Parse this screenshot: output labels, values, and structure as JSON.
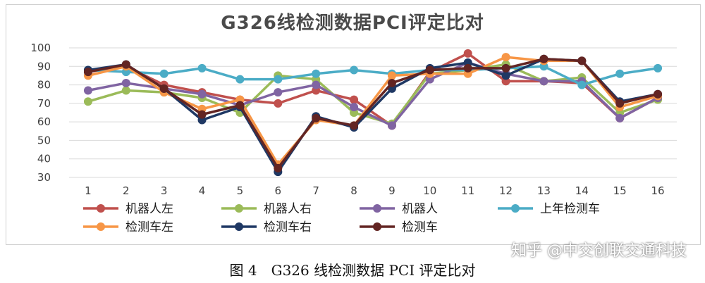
{
  "watermark": "知乎 @中交创联交通科技",
  "caption": "图 4　G326 线检测数据 PCI 评定比对",
  "chart_data": {
    "type": "line",
    "title": "G326线检测数据PCI评定比对",
    "xlabel": "",
    "ylabel": "",
    "x": [
      1,
      2,
      3,
      4,
      5,
      6,
      7,
      8,
      9,
      10,
      11,
      12,
      13,
      14,
      15,
      16
    ],
    "ylim": [
      30,
      100
    ],
    "yticks": [
      30,
      40,
      50,
      60,
      70,
      80,
      90,
      100
    ],
    "grid": true,
    "legend_position": "bottom",
    "series": [
      {
        "name": "机器人左",
        "color": "#c0504d",
        "values": [
          87,
          90,
          80,
          76,
          72,
          70,
          77,
          72,
          58,
          87,
          97,
          82,
          82,
          81,
          62,
          73
        ]
      },
      {
        "name": "机器人右",
        "color": "#9bbb59",
        "values": [
          71,
          77,
          76,
          73,
          65,
          85,
          83,
          65,
          59,
          86,
          88,
          91,
          82,
          84,
          65,
          72
        ]
      },
      {
        "name": "机器人",
        "color": "#8064a2",
        "values": [
          77,
          81,
          78,
          75,
          69,
          76,
          80,
          68,
          58,
          83,
          92,
          86,
          82,
          82,
          62,
          73
        ]
      },
      {
        "name": "上年检测车",
        "color": "#4bacc6",
        "values": [
          88,
          87,
          86,
          89,
          83,
          83,
          86,
          88,
          86,
          88,
          88,
          89,
          90,
          80,
          86,
          89
        ]
      },
      {
        "name": "检测车左",
        "color": "#f79646",
        "values": [
          85,
          90,
          76,
          67,
          72,
          37,
          61,
          58,
          85,
          86,
          86,
          95,
          93,
          93,
          68,
          74
        ]
      },
      {
        "name": "检测车右",
        "color": "#1f3864",
        "values": [
          88,
          91,
          78,
          61,
          68,
          33,
          63,
          57,
          78,
          89,
          92,
          85,
          94,
          93,
          71,
          75
        ]
      },
      {
        "name": "检测车",
        "color": "#632523",
        "values": [
          87,
          91,
          78,
          64,
          69,
          35,
          62,
          58,
          81,
          88,
          89,
          89,
          94,
          93,
          70,
          75
        ]
      }
    ]
  }
}
